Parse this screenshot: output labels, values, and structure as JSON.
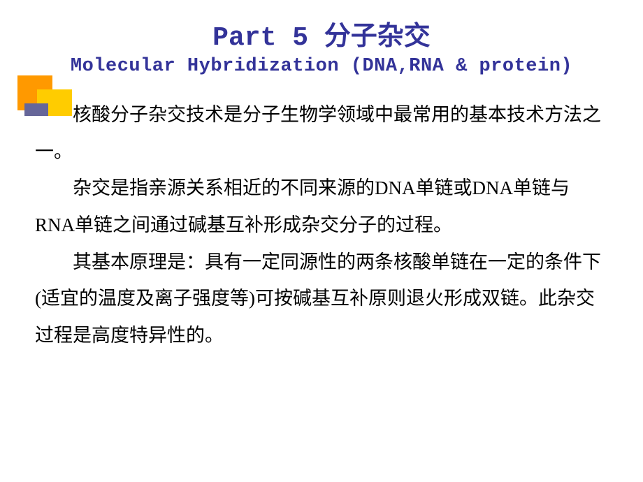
{
  "colors": {
    "title_color": "#333399",
    "body_color": "#000000",
    "background": "#ffffff",
    "deco_orange": "#ff9900",
    "deco_yellow": "#ffcc00",
    "deco_purple": "#666699"
  },
  "typography": {
    "title_line1_fontsize": 38,
    "title_line2_fontsize": 27,
    "body_fontsize": 27,
    "body_line_height": 1.95,
    "title_font": "Courier New / SimHei bold",
    "body_font": "SimSun"
  },
  "title": {
    "line1": "Part 5  分子杂交",
    "line2": "Molecular Hybridization (DNA,RNA & protein)"
  },
  "body": {
    "p1": "核酸分子杂交技术是分子生物学领域中最常用的基本技术方法之一。",
    "p2": "杂交是指亲源关系相近的不同来源的DNA单链或DNA单链与RNA单链之间通过碱基互补形成杂交分子的过程。",
    "p3": "其基本原理是：具有一定同源性的两条核酸单链在一定的条件下(适宜的温度及离子强度等)可按碱基互补原则退火形成双链。此杂交过程是高度特异性的。"
  }
}
